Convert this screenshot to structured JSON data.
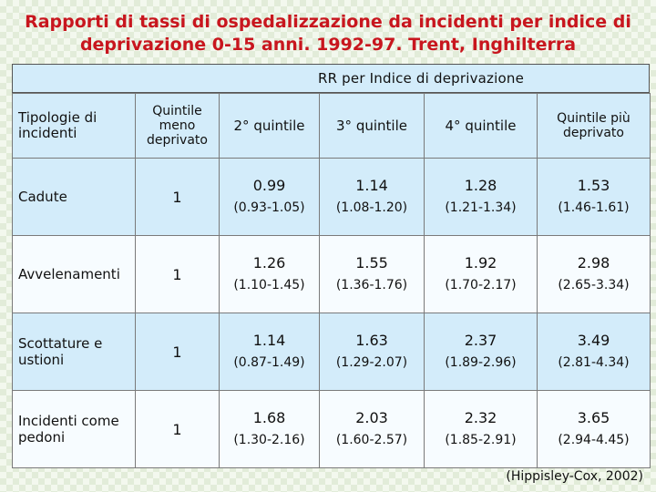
{
  "title": {
    "line1": "Rapporti di tassi di ospedalizzazione da incidenti per indice di",
    "line2": "deprivazione 0-15 anni. 1992-97. Trent, Inghilterra"
  },
  "table": {
    "group_header": "RR per Indice di deprivazione",
    "row_header": "Tipologie di incidenti",
    "columns": [
      "Quintile meno deprivato",
      "2° quintile",
      "3° quintile",
      "4° quintile",
      "Quintile più deprivato"
    ],
    "rows": [
      {
        "category": "Cadute",
        "base": "1",
        "values": [
          {
            "rr": "0.99",
            "ci": "(0.93-1.05)"
          },
          {
            "rr": "1.14",
            "ci": "(1.08-1.20)"
          },
          {
            "rr": "1.28",
            "ci": "(1.21-1.34)"
          },
          {
            "rr": "1.53",
            "ci": "(1.46-1.61)"
          }
        ]
      },
      {
        "category": "Avvelenamenti",
        "base": "1",
        "values": [
          {
            "rr": "1.26",
            "ci": "(1.10-1.45)"
          },
          {
            "rr": "1.55",
            "ci": "(1.36-1.76)"
          },
          {
            "rr": "1.92",
            "ci": "(1.70-2.17)"
          },
          {
            "rr": "2.98",
            "ci": "(2.65-3.34)"
          }
        ]
      },
      {
        "category": "Scottature e ustioni",
        "base": "1",
        "values": [
          {
            "rr": "1.14",
            "ci": "(0.87-1.49)"
          },
          {
            "rr": "1.63",
            "ci": "(1.29-2.07)"
          },
          {
            "rr": "2.37",
            "ci": "(1.89-2.96)"
          },
          {
            "rr": "3.49",
            "ci": "(2.81-4.34)"
          }
        ]
      },
      {
        "category": "Incidenti come pedoni",
        "base": "1",
        "values": [
          {
            "rr": "1.68",
            "ci": "(1.30-2.16)"
          },
          {
            "rr": "2.03",
            "ci": "(1.60-2.57)"
          },
          {
            "rr": "2.32",
            "ci": "(1.85-2.91)"
          },
          {
            "rr": "3.65",
            "ci": "(2.94-4.45)"
          }
        ]
      }
    ]
  },
  "citation": "(Hippisley-Cox, 2002)",
  "colors": {
    "title": "#c8161e",
    "header_bg": "#d3ecfa",
    "row_alt_bg": "#f7fcff",
    "page_bg": "#f3f8ee"
  }
}
